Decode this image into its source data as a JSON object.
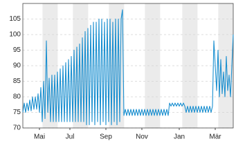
{
  "chart_data": {
    "type": "line",
    "categories": [
      null,
      null,
      null,
      null,
      null,
      null,
      null,
      null,
      null,
      null,
      null,
      null,
      "Mai",
      null,
      null,
      null,
      null,
      null,
      null,
      null,
      null,
      null,
      null,
      null,
      null,
      null,
      null,
      null,
      null,
      null,
      null,
      null,
      null,
      null,
      "Jul",
      null,
      null,
      null,
      null,
      null,
      null,
      null,
      null,
      null,
      null,
      null,
      null,
      null,
      null,
      null,
      null,
      null,
      null,
      null,
      null,
      null,
      null,
      null,
      null,
      null,
      "Sep",
      null,
      null,
      null,
      null,
      null,
      null,
      null,
      null,
      null,
      null,
      null,
      null,
      null,
      null,
      null,
      null,
      null,
      null,
      null,
      null,
      null,
      null,
      null,
      null,
      null,
      "Nov",
      null,
      null,
      null,
      null,
      null,
      null,
      null,
      null,
      null,
      null,
      null,
      null,
      null,
      null,
      null,
      null,
      null,
      null,
      null,
      null,
      null,
      null,
      null,
      null,
      null,
      null,
      "Jan",
      null,
      null,
      null,
      null,
      null,
      null,
      null,
      null,
      null,
      null,
      null,
      null,
      null,
      null,
      null,
      null,
      null,
      null,
      null,
      null,
      null,
      null,
      null,
      null,
      null,
      "Mär",
      null,
      null,
      null,
      null,
      null,
      null,
      null,
      null,
      null,
      null,
      null,
      null,
      null
    ],
    "values": [
      75,
      78,
      75,
      78,
      75.5,
      79,
      75.5,
      80,
      76,
      80,
      76,
      81,
      75,
      83,
      72,
      85,
      73,
      98,
      75,
      86,
      72,
      87,
      72,
      87,
      72,
      88,
      72,
      89,
      72,
      90,
      72,
      91,
      72,
      92,
      72,
      93,
      72,
      95,
      72,
      96,
      72,
      97,
      72,
      99,
      72,
      101,
      71,
      102,
      71,
      103,
      72,
      104,
      71,
      104,
      72,
      105,
      71,
      105,
      72,
      104,
      71,
      105,
      72,
      105,
      71,
      104,
      72,
      105,
      71,
      105,
      72,
      105,
      108,
      74,
      76,
      74,
      76,
      74,
      76,
      74,
      76,
      74,
      76,
      74,
      76,
      74,
      76,
      74,
      76,
      74,
      76,
      74,
      76,
      74,
      76,
      74,
      76,
      74,
      76,
      74,
      76,
      74,
      76,
      74,
      76,
      74,
      78,
      77,
      78,
      77,
      78,
      77,
      78,
      77,
      78,
      77,
      78,
      77,
      75,
      77,
      75,
      77,
      75,
      77,
      75,
      77,
      75,
      77,
      75,
      77,
      75,
      77,
      75,
      77,
      75,
      77,
      75,
      77,
      98,
      90,
      82,
      95,
      80,
      92,
      81,
      88,
      80,
      93,
      82,
      87,
      80,
      90,
      100
    ],
    "color": "#1a8fd0",
    "ylim": [
      70,
      110
    ],
    "yticks": [
      70,
      75,
      80,
      85,
      90,
      95,
      100,
      105
    ],
    "grid": true
  }
}
